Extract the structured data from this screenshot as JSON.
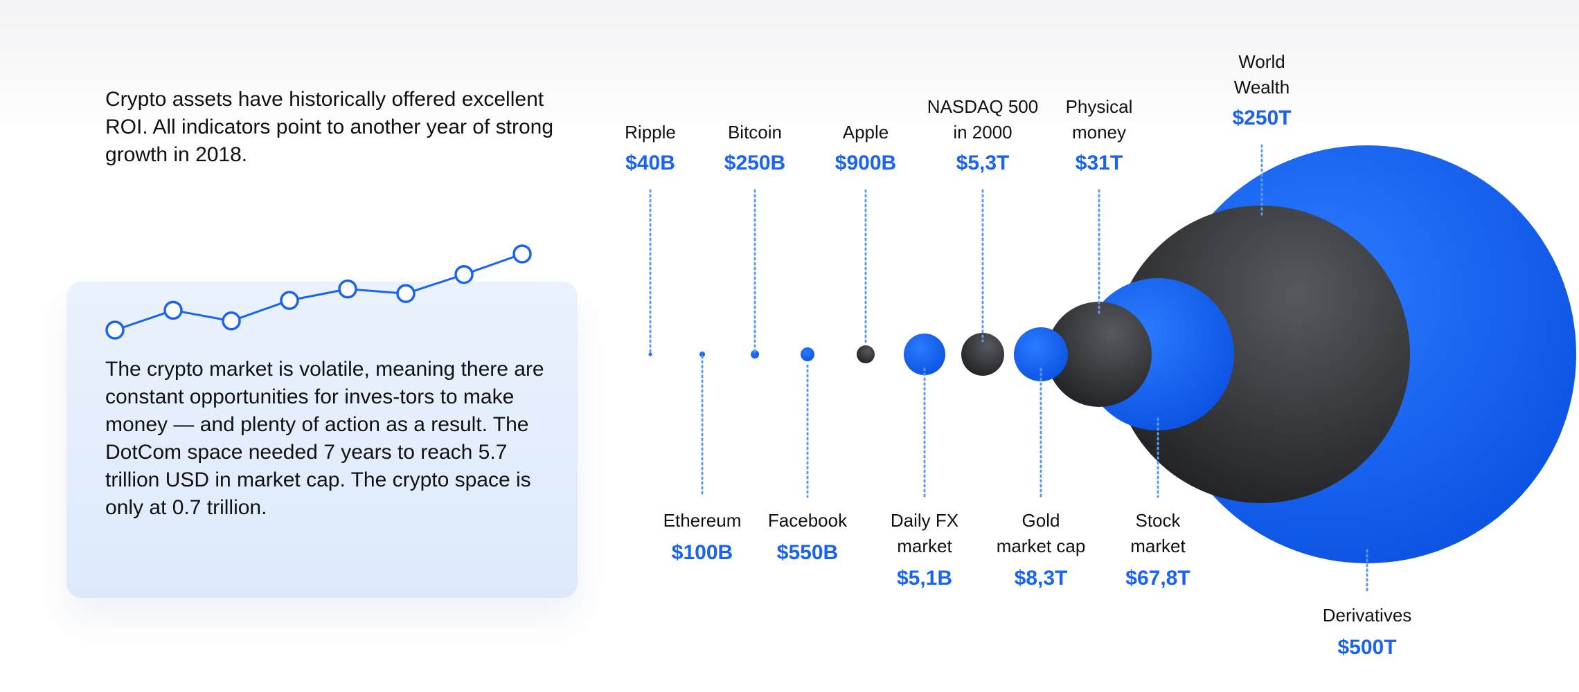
{
  "intro_text": "Crypto assets have historically offered excellent ROI. All indicators point to another year of strong growth in 2018.",
  "card_text": "The crypto market is volatile, meaning there are constant opportunities for inves-tors to make money — and plenty of action as a result. The DotCom space needed 7 years to reach 5.7 trillion USD in market cap. The crypto space is only at 0.7 trillion.",
  "colors": {
    "accent": "#1a63f0",
    "dark": "#2b2c30",
    "card_bg": "#e3edfc",
    "dotted": "#5b9bef"
  },
  "icons": {
    "sparkline": "trend-line-icon"
  },
  "sparkline": {
    "levels": [
      0.0,
      0.26,
      0.12,
      0.39,
      0.54,
      0.48,
      0.73,
      1.0
    ]
  },
  "markets": [
    {
      "name": "Ripple",
      "value": "$40B",
      "color": "blue"
    },
    {
      "name": "Ethereum",
      "value": "$100B",
      "color": "blue"
    },
    {
      "name": "Bitcoin",
      "value": "$250B",
      "color": "blue"
    },
    {
      "name": "Facebook",
      "value": "$550B",
      "color": "blue"
    },
    {
      "name": "Apple",
      "value": "$900B",
      "color": "dark"
    },
    {
      "name": "Daily FX\nmarket",
      "value": "$5,1B",
      "color": "blue"
    },
    {
      "name": "NASDAQ 500\nin 2000",
      "value": "$5,3T",
      "color": "dark"
    },
    {
      "name": "Gold\nmarket cap",
      "value": "$8,3T",
      "color": "blue"
    },
    {
      "name": "Physical\nmoney",
      "value": "$31T",
      "color": "dark"
    },
    {
      "name": "Stock\nmarket",
      "value": "$67,8T",
      "color": "blue"
    },
    {
      "name": "World\nWealth",
      "value": "$250T",
      "color": "dark"
    },
    {
      "name": "Derivatives",
      "value": "$500T",
      "color": "blue"
    }
  ]
}
